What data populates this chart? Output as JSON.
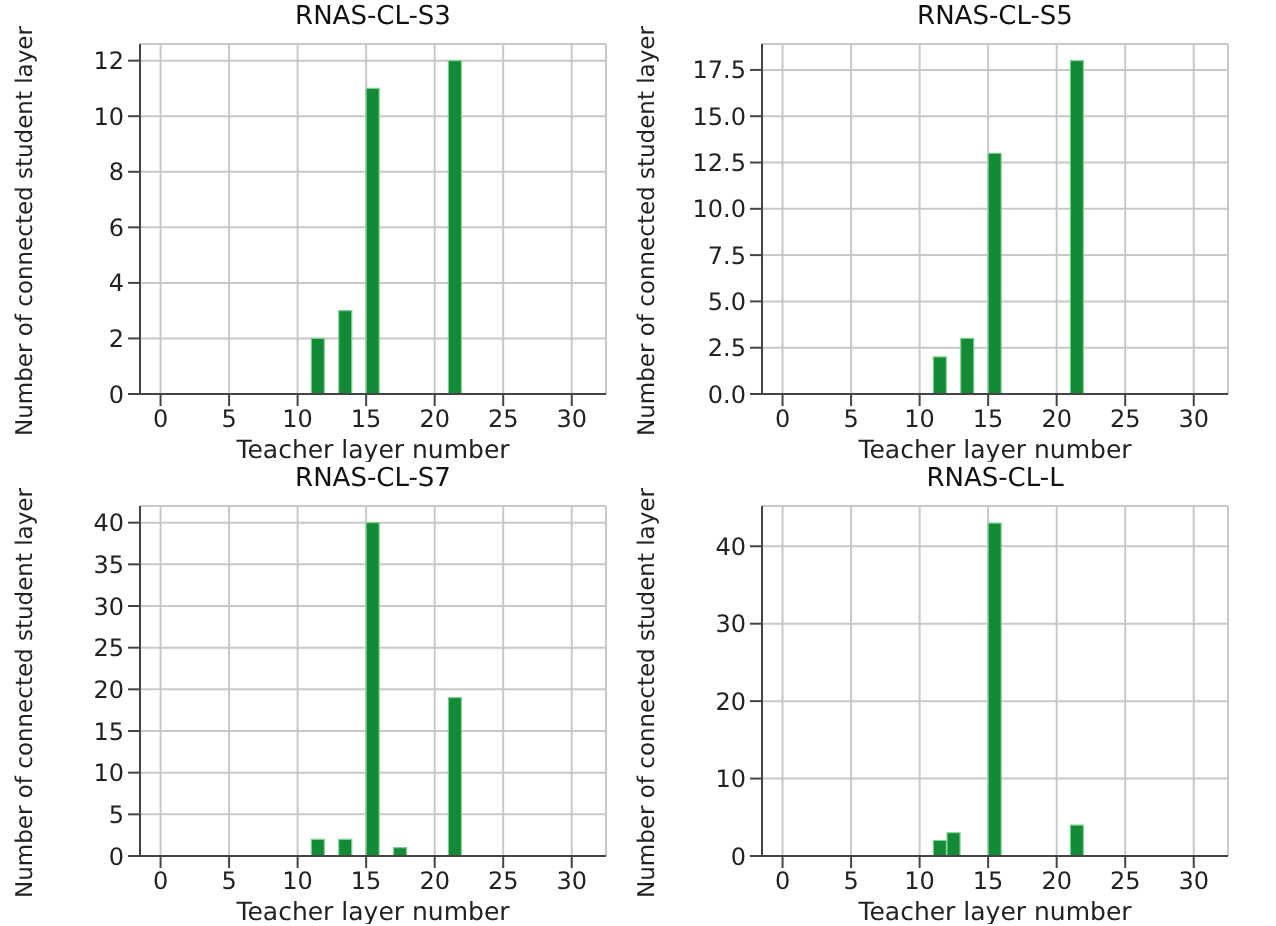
{
  "chart_data": [
    {
      "type": "histogram",
      "title": "RNAS-CL-S3",
      "xlabel": "Teacher layer number",
      "ylabel": "Number of connected student layer",
      "bins": [
        0,
        1,
        2,
        3,
        4,
        5,
        6,
        7,
        8,
        9,
        10,
        11,
        12,
        13,
        14,
        15,
        16,
        17,
        18,
        19,
        20,
        21,
        22,
        23,
        24,
        25,
        26,
        27,
        28,
        29,
        30,
        31
      ],
      "values": [
        0,
        0,
        0,
        0,
        0,
        0,
        0,
        0,
        0,
        0,
        0,
        2,
        0,
        3,
        0,
        11,
        0,
        0,
        0,
        0,
        0,
        12,
        0,
        0,
        0,
        0,
        0,
        0,
        0,
        0,
        0
      ],
      "color": "#138a36",
      "xlim": [
        -1.5,
        32.5
      ],
      "xticks": [
        0,
        5,
        10,
        15,
        20,
        25,
        30
      ],
      "ylim": [
        0,
        12.6
      ],
      "yticks": [
        0,
        2,
        4,
        6,
        8,
        10,
        12
      ],
      "grid": true
    },
    {
      "type": "histogram",
      "title": "RNAS-CL-S5",
      "xlabel": "Teacher layer number",
      "ylabel": "Number of connected student layer",
      "bins": [
        0,
        1,
        2,
        3,
        4,
        5,
        6,
        7,
        8,
        9,
        10,
        11,
        12,
        13,
        14,
        15,
        16,
        17,
        18,
        19,
        20,
        21,
        22,
        23,
        24,
        25,
        26,
        27,
        28,
        29,
        30,
        31
      ],
      "values": [
        0,
        0,
        0,
        0,
        0,
        0,
        0,
        0,
        0,
        0,
        0,
        2,
        0,
        3,
        0,
        13,
        0,
        0,
        0,
        0,
        0,
        18,
        0,
        0,
        0,
        0,
        0,
        0,
        0,
        0,
        0
      ],
      "color": "#138a36",
      "xlim": [
        -1.5,
        32.5
      ],
      "xticks": [
        0,
        5,
        10,
        15,
        20,
        25,
        30
      ],
      "ylim": [
        0,
        18.9
      ],
      "yticks": [
        {
          "value": 0,
          "label": "0.0"
        },
        {
          "value": 2.5,
          "label": "2.5"
        },
        {
          "value": 5,
          "label": "5.0"
        },
        {
          "value": 7.5,
          "label": "7.5"
        },
        {
          "value": 10,
          "label": "10.0"
        },
        {
          "value": 12.5,
          "label": "12.5"
        },
        {
          "value": 15,
          "label": "15.0"
        },
        {
          "value": 17.5,
          "label": "17.5"
        }
      ],
      "grid": true
    },
    {
      "type": "histogram",
      "title": "RNAS-CL-S7",
      "xlabel": "Teacher layer number",
      "ylabel": "Number of connected student layer",
      "bins": [
        0,
        1,
        2,
        3,
        4,
        5,
        6,
        7,
        8,
        9,
        10,
        11,
        12,
        13,
        14,
        15,
        16,
        17,
        18,
        19,
        20,
        21,
        22,
        23,
        24,
        25,
        26,
        27,
        28,
        29,
        30,
        31
      ],
      "values": [
        0,
        0,
        0,
        0,
        0,
        0,
        0,
        0,
        0,
        0,
        0,
        2,
        0,
        2,
        0,
        40,
        0,
        1,
        0,
        0,
        0,
        19,
        0,
        0,
        0,
        0,
        0,
        0,
        0,
        0,
        0
      ],
      "color": "#138a36",
      "xlim": [
        -1.5,
        32.5
      ],
      "xticks": [
        0,
        5,
        10,
        15,
        20,
        25,
        30
      ],
      "ylim": [
        0,
        42
      ],
      "yticks": [
        0,
        5,
        10,
        15,
        20,
        25,
        30,
        35,
        40
      ],
      "grid": true
    },
    {
      "type": "histogram",
      "title": "RNAS-CL-L",
      "xlabel": "Teacher layer number",
      "ylabel": "Number of connected student layer",
      "bins": [
        0,
        1,
        2,
        3,
        4,
        5,
        6,
        7,
        8,
        9,
        10,
        11,
        12,
        13,
        14,
        15,
        16,
        17,
        18,
        19,
        20,
        21,
        22,
        23,
        24,
        25,
        26,
        27,
        28,
        29,
        30,
        31
      ],
      "values": [
        0,
        0,
        0,
        0,
        0,
        0,
        0,
        0,
        0,
        0,
        0,
        2,
        3,
        0,
        0,
        43,
        0,
        0,
        0,
        0,
        0,
        4,
        0,
        0,
        0,
        0,
        0,
        0,
        0,
        0,
        0
      ],
      "color": "#138a36",
      "xlim": [
        -1.5,
        32.5
      ],
      "xticks": [
        0,
        5,
        10,
        15,
        20,
        25,
        30
      ],
      "ylim": [
        0,
        45.2
      ],
      "yticks": [
        0,
        10,
        20,
        30,
        40
      ],
      "grid": true
    }
  ]
}
